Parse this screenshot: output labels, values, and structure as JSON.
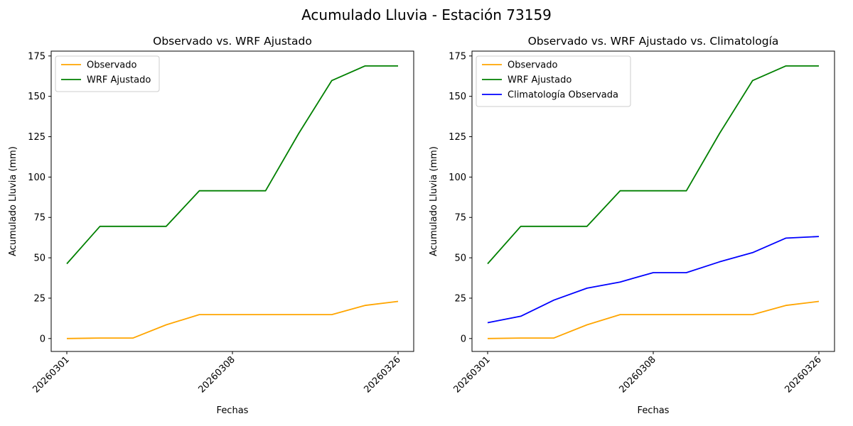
{
  "figure": {
    "title": "Acumulado Lluvia - Estación 73159"
  },
  "colors": {
    "observado": "#FFA500",
    "wrf": "#008000",
    "climatologia": "#0000FF"
  },
  "chart_data": [
    {
      "type": "line",
      "title": "Observado vs. WRF Ajustado",
      "xlabel": "Fechas",
      "ylabel": "Acumulado Lluvia (mm)",
      "ylim": [
        -8,
        178
      ],
      "yticks": [
        0,
        25,
        50,
        75,
        100,
        125,
        150,
        175
      ],
      "xticks": [
        "20260301",
        "20260308",
        "20260326"
      ],
      "grid": false,
      "legend_position": "upper-left",
      "series": [
        {
          "name": "Observado",
          "color": "#FFA500",
          "values": [
            0,
            0.3,
            0.3,
            8.5,
            14.8,
            14.8,
            14.8,
            14.8,
            14.8,
            20.5,
            23
          ]
        },
        {
          "name": "WRF Ajustado",
          "color": "#008000",
          "values": [
            46.3,
            69.5,
            69.5,
            69.5,
            91.5,
            91.5,
            91.5,
            127,
            159.8,
            168.8,
            168.8
          ]
        }
      ]
    },
    {
      "type": "line",
      "title": "Observado vs. WRF Ajustado vs. Climatología",
      "xlabel": "Fechas",
      "ylabel": "Acumulado Lluvia (mm)",
      "ylim": [
        -8,
        178
      ],
      "yticks": [
        0,
        25,
        50,
        75,
        100,
        125,
        150,
        175
      ],
      "xticks": [
        "20260301",
        "20260308",
        "20260326"
      ],
      "grid": false,
      "legend_position": "upper-left",
      "series": [
        {
          "name": "Observado",
          "color": "#FFA500",
          "values": [
            0,
            0.3,
            0.3,
            8.5,
            14.8,
            14.8,
            14.8,
            14.8,
            14.8,
            20.5,
            23
          ]
        },
        {
          "name": "WRF Ajustado",
          "color": "#008000",
          "values": [
            46.3,
            69.5,
            69.5,
            69.5,
            91.5,
            91.5,
            91.5,
            127,
            159.8,
            168.8,
            168.8
          ]
        },
        {
          "name": "Climatología Observada",
          "color": "#0000FF",
          "values": [
            9.8,
            13.8,
            23.8,
            31.2,
            35,
            40.8,
            40.8,
            47.5,
            53.2,
            62.2,
            63.2
          ]
        }
      ]
    }
  ]
}
